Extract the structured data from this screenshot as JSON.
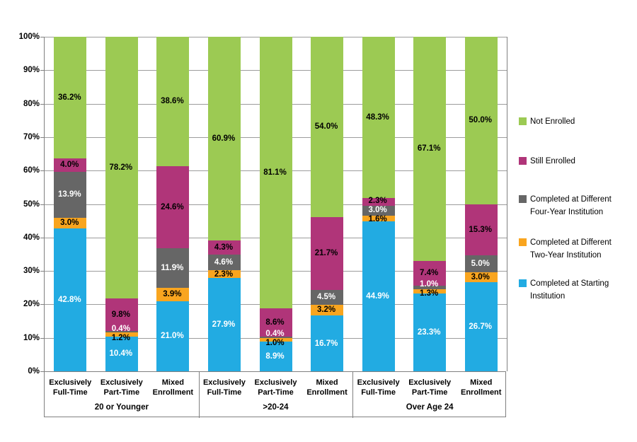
{
  "chart_data": {
    "type": "bar",
    "variant": "100%-stacked-column",
    "title": "",
    "xlabel": "",
    "ylabel": "",
    "ylim": [
      0,
      100
    ],
    "grid": true,
    "legend_position": "right",
    "value_suffix": "%",
    "y_axis": {
      "tick_labels": [
        "0%",
        "10%",
        "20%",
        "30%",
        "40%",
        "50%",
        "60%",
        "70%",
        "80%",
        "90%",
        "100%"
      ]
    },
    "groups": [
      {
        "label": "20 or Younger"
      },
      {
        "label": ">20-24"
      },
      {
        "label": "Over Age 24"
      }
    ],
    "categories_per_group": [
      [
        "Exclusively",
        "Full-Time"
      ],
      [
        "Exclusively",
        "Part-Time"
      ],
      [
        "Mixed",
        "Enrollment"
      ]
    ],
    "series": [
      {
        "name": "Completed at Starting Institution",
        "color": "#22ABE2",
        "label_color": "#FFFFFF",
        "values": [
          42.8,
          10.4,
          21.0,
          27.9,
          8.9,
          16.7,
          44.9,
          23.3,
          26.7
        ]
      },
      {
        "name": "Completed at Different Two-Year Institution",
        "color": "#F9A51F",
        "label_color": "#000000",
        "values": [
          3.0,
          1.2,
          3.9,
          2.3,
          1.0,
          3.2,
          1.6,
          1.3,
          3.0
        ]
      },
      {
        "name": "Completed at Different Four-Year Institution",
        "color": "#666666",
        "label_color": "#FFFFFF",
        "values": [
          13.9,
          0.4,
          11.9,
          4.6,
          0.4,
          4.5,
          3.0,
          1.0,
          5.0
        ]
      },
      {
        "name": "Still Enrolled",
        "color": "#B03579",
        "label_color": "#000000",
        "values": [
          4.0,
          9.8,
          24.6,
          4.3,
          8.6,
          21.7,
          2.3,
          7.4,
          15.3
        ]
      },
      {
        "name": "Not Enrolled",
        "color": "#9CCA53",
        "label_color": "#000000",
        "values": [
          36.2,
          78.2,
          38.6,
          60.9,
          81.1,
          54.0,
          48.3,
          67.1,
          50.0
        ]
      }
    ],
    "legend": [
      {
        "name": "Not Enrolled",
        "color": "#9CCA53",
        "lines": [
          "Not Enrolled"
        ]
      },
      {
        "name": "Still Enrolled",
        "color": "#B03579",
        "lines": [
          "Still Enrolled"
        ]
      },
      {
        "name": "Completed at Different Four-Year Institution",
        "color": "#666666",
        "lines": [
          "Completed at Different",
          "Four-Year Institution"
        ]
      },
      {
        "name": "Completed at Different Two-Year Institution",
        "color": "#F9A51F",
        "lines": [
          "Completed at Different",
          "Two-Year Institution"
        ]
      },
      {
        "name": "Completed at Starting Institution",
        "color": "#22ABE2",
        "lines": [
          "Completed at Starting",
          "Institution"
        ]
      }
    ]
  }
}
